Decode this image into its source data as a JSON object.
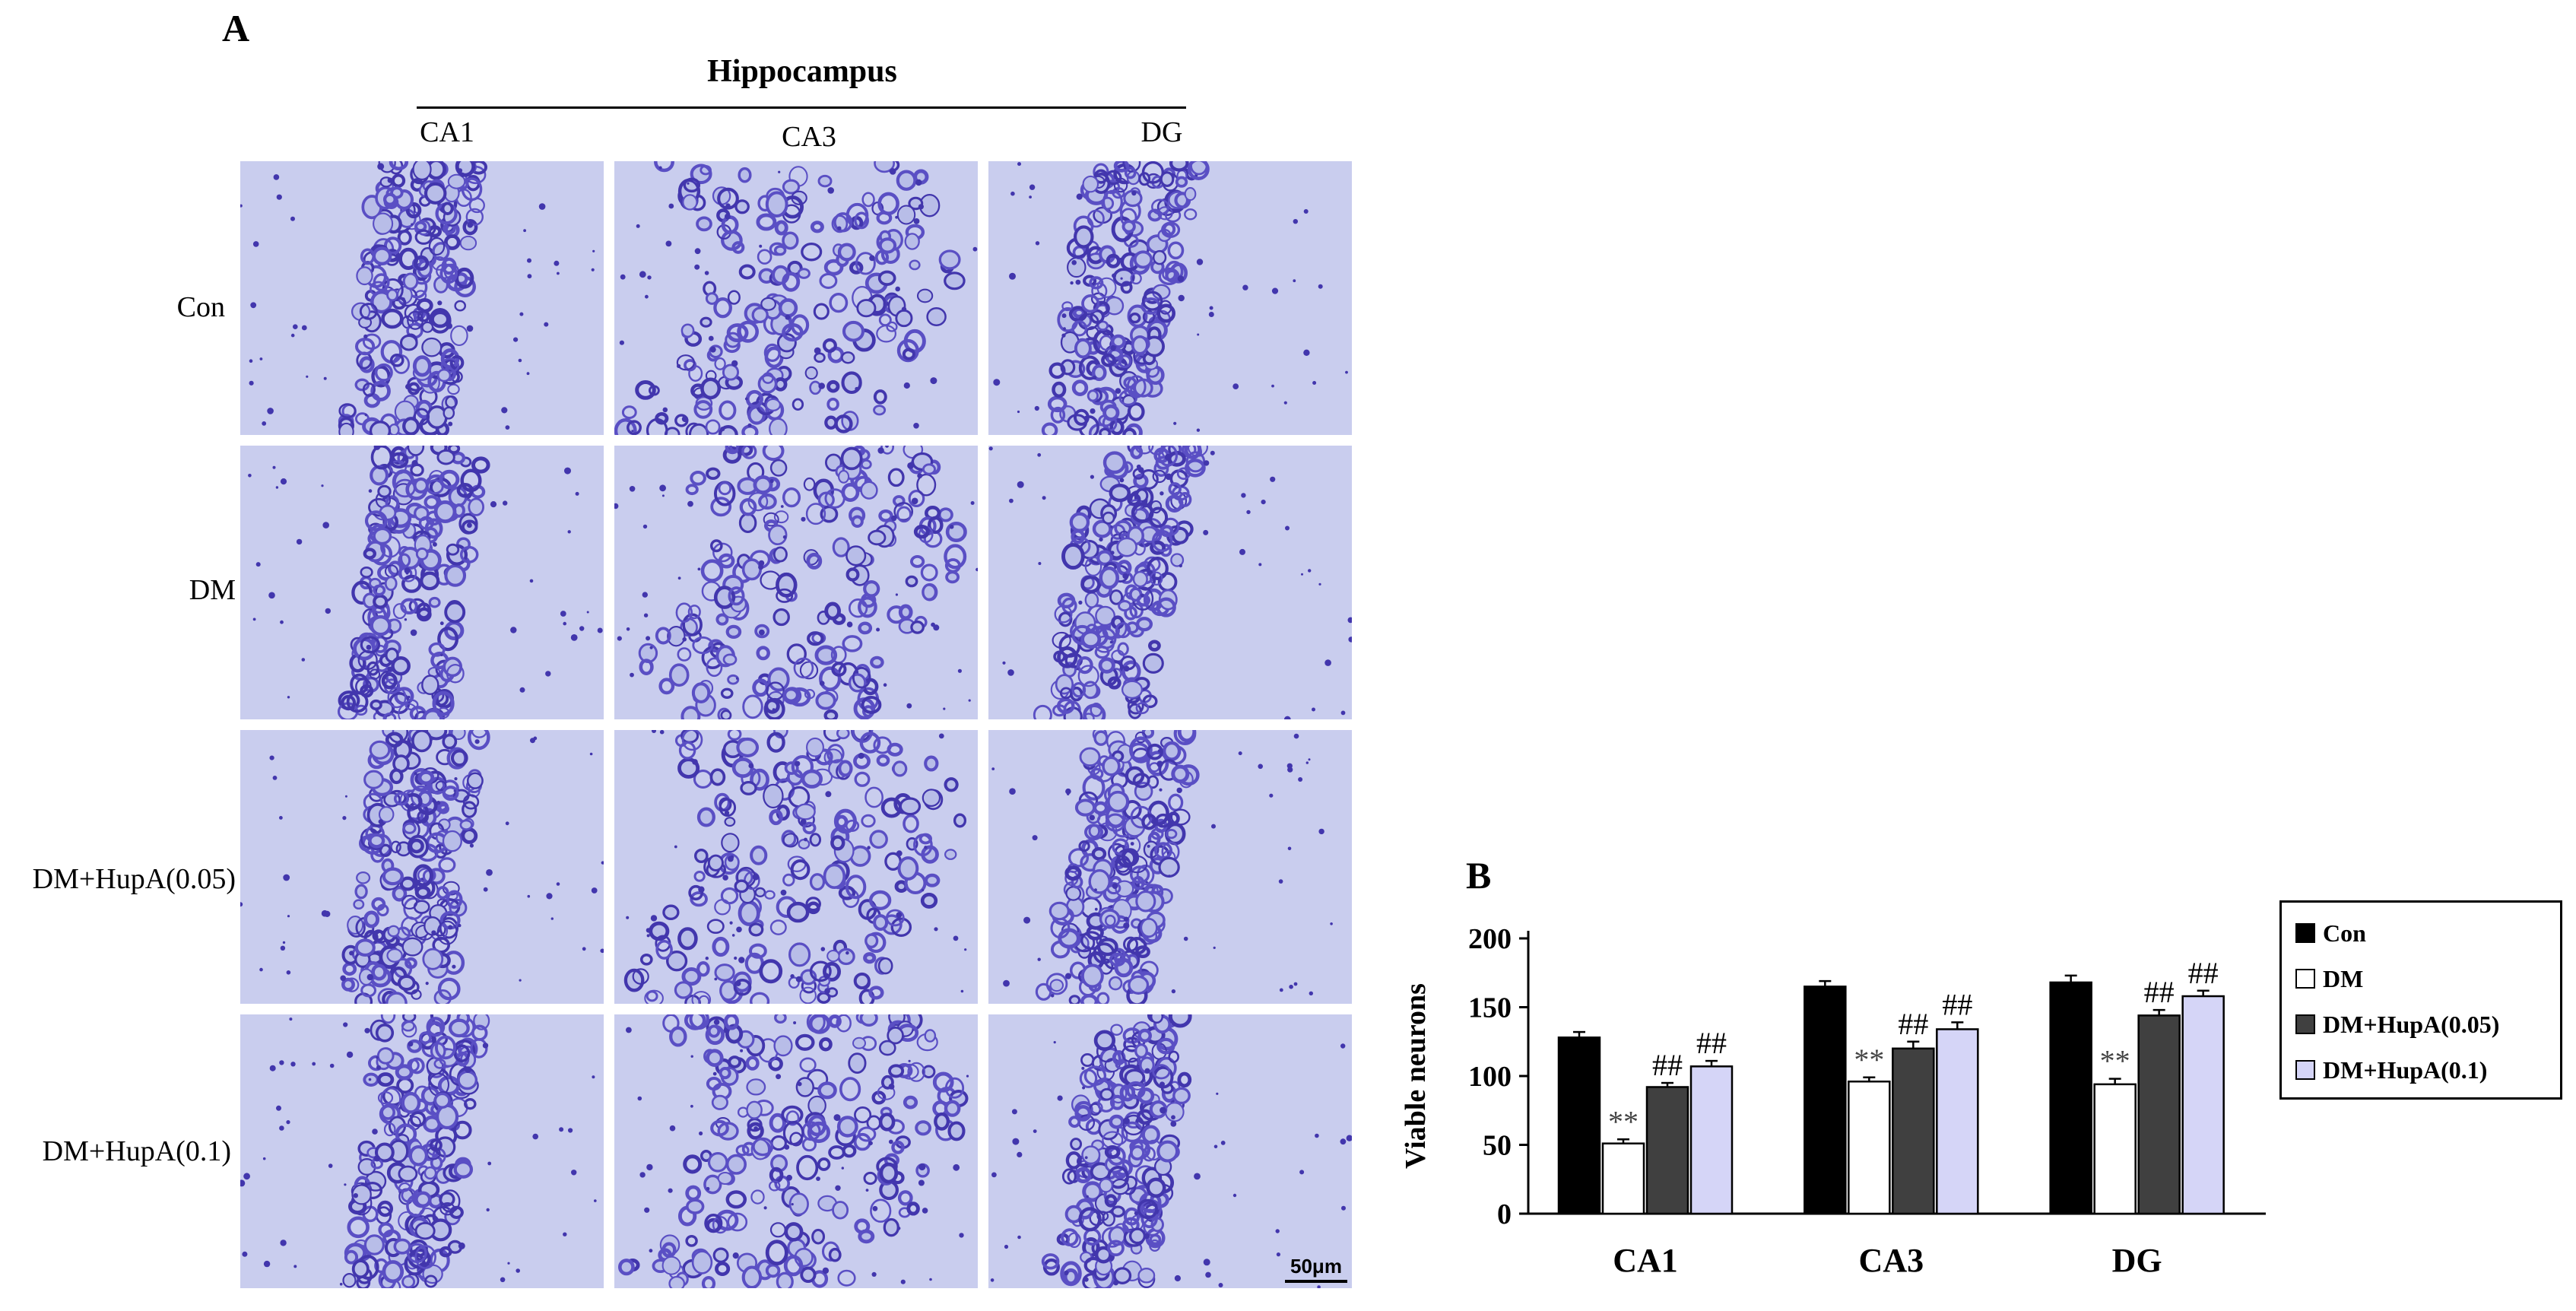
{
  "figure": {
    "panel_a_letter": "A",
    "panel_b_letter": "B",
    "region_title": "Hippocampus",
    "columns": [
      "CA1",
      "CA3",
      "DG"
    ],
    "rows": [
      "Con",
      "DM",
      "DM+HupA(0.05)",
      "DM+HupA(0.1)"
    ],
    "scale_bar": "50μm",
    "stain_colors": {
      "background": "#c9cdee",
      "cell": "#5a4fc4",
      "dense": "#4236ad"
    }
  },
  "chart_data": {
    "type": "bar",
    "title": "",
    "xlabel": "",
    "ylabel": "Viable neurons",
    "ylim": [
      0,
      200
    ],
    "yticks": [
      0,
      50,
      100,
      150,
      200
    ],
    "grid": false,
    "legend_position": "top-right",
    "categories": [
      "CA1",
      "CA3",
      "DG"
    ],
    "series": [
      {
        "name": "Con",
        "values": [
          128,
          165,
          168
        ],
        "errors": [
          4,
          4,
          5
        ],
        "color": "#000000",
        "annotations": [
          "",
          "",
          ""
        ]
      },
      {
        "name": "DM",
        "values": [
          51,
          96,
          94
        ],
        "errors": [
          3,
          3,
          4
        ],
        "color": "#ffffff",
        "annotations": [
          "**",
          "**",
          "**"
        ]
      },
      {
        "name": "DM+HupA(0.05)",
        "values": [
          92,
          120,
          144
        ],
        "errors": [
          3,
          5,
          4
        ],
        "color": "#404040",
        "annotations": [
          "##",
          "##",
          "##"
        ]
      },
      {
        "name": "DM+HupA(0.1)",
        "values": [
          107,
          134,
          158
        ],
        "errors": [
          4,
          5,
          4
        ],
        "color": "#d5d5f7",
        "annotations": [
          "##",
          "##",
          "##"
        ]
      }
    ]
  }
}
